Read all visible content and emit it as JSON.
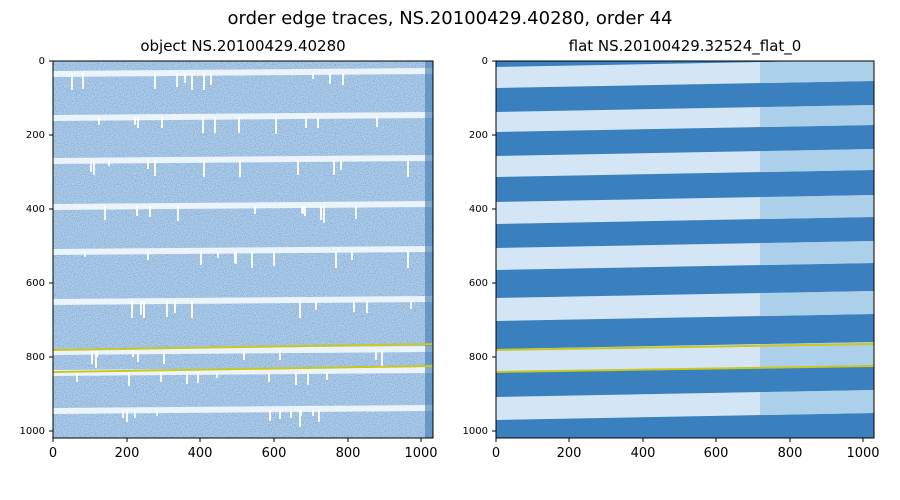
{
  "figure": {
    "title": "order edge traces, NS.20100429.40280, order 44"
  },
  "panels": [
    {
      "title": "object NS.20100429.40280",
      "x_ticks": [
        "0",
        "200",
        "400",
        "600",
        "800",
        "1000"
      ],
      "y_ticks": [
        "0",
        "200",
        "400",
        "600",
        "800",
        "1000"
      ]
    },
    {
      "title": "flat NS.20100429.32524_flat_0",
      "x_ticks": [
        "0",
        "200",
        "400",
        "600",
        "800",
        "1000"
      ],
      "y_ticks": [
        "0",
        "200",
        "400",
        "600",
        "800",
        "1000"
      ]
    }
  ],
  "colors": {
    "object_background": "#7fa9d6",
    "object_order": "#f2f7fd",
    "flat_dark": "#3a80be",
    "flat_light": "#e6f1fb",
    "trace": "#c8c81e"
  }
}
